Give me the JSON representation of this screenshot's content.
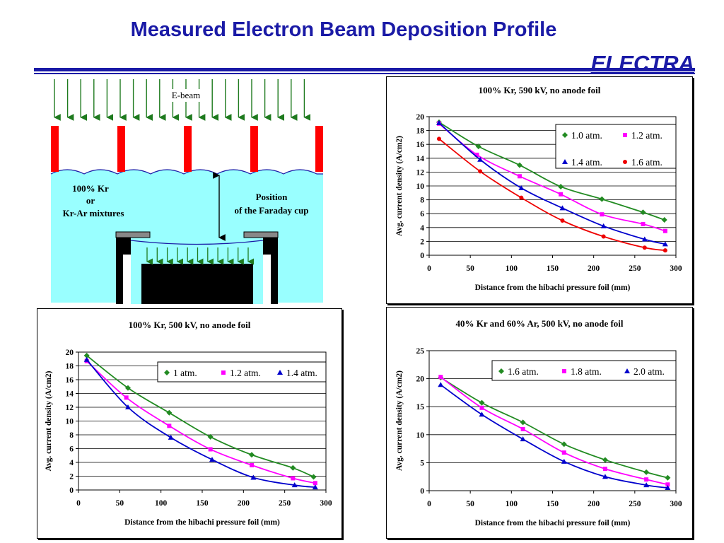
{
  "header": {
    "title": "Measured Electron Beam Deposition Profile",
    "brand": "ELECTRA"
  },
  "diagram": {
    "ebeam_label": "E-beam",
    "gas_label_1": "100% Kr",
    "gas_label_2": "or",
    "gas_label_3": "Kr-Ar mixtures",
    "position_label_1": "Position",
    "position_label_2": "of the Faraday cup",
    "colors": {
      "gas": "#99ffff",
      "hibachi": "#ff0000",
      "arrow": "#1e7a1e",
      "cup": "#000000",
      "plate": "#888888"
    }
  },
  "chart_data": [
    {
      "type": "line",
      "title": "100% Kr, 590 kV, no anode foil",
      "xlabel": "Distance from the hibachi pressure foil (mm)",
      "ylabel": "Avg. current density (A/cm2)",
      "xlim": [
        0,
        300
      ],
      "ylim": [
        0,
        20
      ],
      "xticks": [
        0,
        50,
        100,
        150,
        200,
        250,
        300
      ],
      "yticks": [
        0,
        2,
        4,
        6,
        8,
        10,
        12,
        14,
        16,
        18,
        20
      ],
      "grid": "horizontal",
      "legend": {
        "position": "top-right",
        "columns": 2
      },
      "series": [
        {
          "name": "1.0 atm.",
          "color": "#228b22",
          "marker": "diamond",
          "x": [
            12,
            60,
            110,
            160,
            210,
            260,
            286
          ],
          "y": [
            19.2,
            15.7,
            13.0,
            9.9,
            8.1,
            6.2,
            5.1
          ]
        },
        {
          "name": "1.2 atm.",
          "color": "#ff00ff",
          "marker": "square",
          "x": [
            12,
            58,
            110,
            160,
            210,
            260,
            287
          ],
          "y": [
            19.0,
            14.5,
            11.4,
            8.8,
            5.9,
            4.5,
            3.5
          ]
        },
        {
          "name": "1.4 atm.",
          "color": "#0000cc",
          "marker": "triangle",
          "x": [
            12,
            62,
            112,
            162,
            212,
            262,
            287
          ],
          "y": [
            19.1,
            13.8,
            9.7,
            6.8,
            4.2,
            2.3,
            1.6
          ]
        },
        {
          "name": "1.6 atm.",
          "color": "#ee0000",
          "marker": "circle",
          "x": [
            12,
            62,
            112,
            162,
            212,
            262,
            287
          ],
          "y": [
            16.8,
            12.1,
            8.3,
            5.0,
            2.7,
            1.1,
            0.7
          ]
        }
      ]
    },
    {
      "type": "line",
      "title": "100% Kr, 500 kV, no anode foil",
      "xlabel": "Distance from the hibachi pressure foil (mm)",
      "ylabel": "Avg. current density (A/cm2)",
      "xlim": [
        0,
        300
      ],
      "ylim": [
        0,
        20
      ],
      "xticks": [
        0,
        50,
        100,
        150,
        200,
        250,
        300
      ],
      "yticks": [
        0,
        2,
        4,
        6,
        8,
        10,
        12,
        14,
        16,
        18,
        20
      ],
      "grid": "horizontal",
      "legend": {
        "position": "top-right",
        "columns": 3
      },
      "series": [
        {
          "name": "1 atm.",
          "color": "#228b22",
          "marker": "diamond",
          "x": [
            10,
            60,
            110,
            160,
            210,
            260,
            285
          ],
          "y": [
            19.5,
            14.8,
            11.2,
            7.7,
            5.1,
            3.2,
            1.9
          ]
        },
        {
          "name": "1.2 atm.",
          "color": "#ff00ff",
          "marker": "square",
          "x": [
            10,
            58,
            110,
            160,
            210,
            260,
            287
          ],
          "y": [
            18.7,
            13.4,
            9.3,
            5.9,
            3.6,
            1.7,
            1.0
          ]
        },
        {
          "name": "1.4 atm.",
          "color": "#0000cc",
          "marker": "triangle",
          "x": [
            10,
            60,
            112,
            162,
            212,
            262,
            287
          ],
          "y": [
            18.9,
            12.0,
            7.6,
            4.4,
            1.8,
            0.7,
            0.4
          ]
        }
      ]
    },
    {
      "type": "line",
      "title": "40% Kr and 60% Ar, 500 kV, no anode foil",
      "xlabel": "Distance from the hibachi pressure foil (mm)",
      "ylabel": "Avg. current density (A/cm2)",
      "xlim": [
        0,
        300
      ],
      "ylim": [
        0,
        25
      ],
      "xticks": [
        0,
        50,
        100,
        150,
        200,
        250,
        300
      ],
      "yticks": [
        0,
        5,
        10,
        15,
        20,
        25
      ],
      "grid": "horizontal",
      "legend": {
        "position": "top-right",
        "columns": 3
      },
      "series": [
        {
          "name": "1.6 atm.",
          "color": "#228b22",
          "marker": "diamond",
          "x": [
            14,
            64,
            114,
            164,
            214,
            264,
            290
          ],
          "y": [
            20.2,
            15.7,
            12.2,
            8.3,
            5.5,
            3.3,
            2.3
          ]
        },
        {
          "name": "1.8 atm.",
          "color": "#ff00ff",
          "marker": "square",
          "x": [
            14,
            64,
            114,
            164,
            214,
            264,
            290
          ],
          "y": [
            20.3,
            14.8,
            11.0,
            6.8,
            3.9,
            2.0,
            1.1
          ]
        },
        {
          "name": "2.0 atm.",
          "color": "#0000cc",
          "marker": "triangle",
          "x": [
            14,
            64,
            114,
            164,
            214,
            264,
            290
          ],
          "y": [
            18.9,
            13.6,
            9.2,
            5.2,
            2.5,
            1.0,
            0.5
          ]
        }
      ]
    }
  ]
}
